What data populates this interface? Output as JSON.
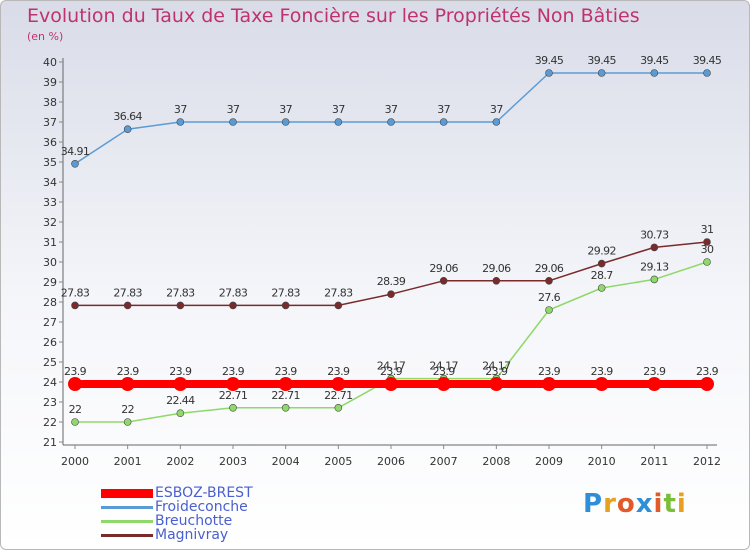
{
  "chart_data": {
    "type": "line",
    "title": "Evolution du Taux de Taxe Foncière sur les Propriétés Non Bâties",
    "ylabel": "(en %)",
    "xlabel": "",
    "categories": [
      "2000",
      "2001",
      "2002",
      "2003",
      "2004",
      "2005",
      "2006",
      "2007",
      "2008",
      "2009",
      "2010",
      "2011",
      "2012"
    ],
    "ylim": [
      21,
      40
    ],
    "yticks": [
      21,
      22,
      23,
      24,
      25,
      26,
      27,
      28,
      29,
      30,
      31,
      32,
      33,
      34,
      35,
      36,
      37,
      38,
      39,
      40
    ],
    "grid": false,
    "legend_position": "bottom-left",
    "series": [
      {
        "name": "ESBOZ-BREST",
        "color": "#ff0000",
        "values": [
          23.9,
          23.9,
          23.9,
          23.9,
          23.9,
          23.9,
          23.9,
          23.9,
          23.9,
          23.9,
          23.9,
          23.9,
          23.9
        ],
        "labels": [
          "23.9",
          "23.9",
          "23.9",
          "23.9",
          "23.9",
          "23.9",
          "23.9",
          "23.9",
          "23.9",
          "23.9",
          "23.9",
          "23.9",
          "23.9"
        ]
      },
      {
        "name": "Froideconche",
        "color": "#5b9bd5",
        "values": [
          34.91,
          36.64,
          37,
          37,
          37,
          37,
          37,
          37,
          37,
          39.45,
          39.45,
          39.45,
          39.45
        ],
        "labels": [
          "34.91",
          "36.64",
          "37",
          "37",
          "37",
          "37",
          "37",
          "37",
          "37",
          "39.45",
          "39.45",
          "39.45",
          "39.45"
        ]
      },
      {
        "name": "Breuchotte",
        "color": "#8fd86a",
        "values": [
          22,
          22,
          22.44,
          22.71,
          22.71,
          22.71,
          24.17,
          24.17,
          24.17,
          27.6,
          28.7,
          29.13,
          30
        ],
        "labels": [
          "22",
          "22",
          "22.44",
          "22.71",
          "22.71",
          "22.71",
          "24.17",
          "24.17",
          "24.17",
          "27.6",
          "28.7",
          "29.13",
          "30"
        ]
      },
      {
        "name": "Magnivray",
        "color": "#7a2a2a",
        "values": [
          27.83,
          27.83,
          27.83,
          27.83,
          27.83,
          27.83,
          28.39,
          29.06,
          29.06,
          29.06,
          29.92,
          30.73,
          31
        ],
        "labels": [
          "27.83",
          "27.83",
          "27.83",
          "27.83",
          "27.83",
          "27.83",
          "28.39",
          "29.06",
          "29.06",
          "29.06",
          "29.92",
          "30.73",
          "31"
        ]
      }
    ]
  },
  "logo": {
    "letters": [
      "P",
      "r",
      "o",
      "x",
      "i",
      "t",
      "i"
    ],
    "colors": [
      "#2e8fd8",
      "#e8a020",
      "#e05a2a",
      "#2e8fd8",
      "#e05a2a",
      "#7abf3a",
      "#e8a020"
    ]
  }
}
